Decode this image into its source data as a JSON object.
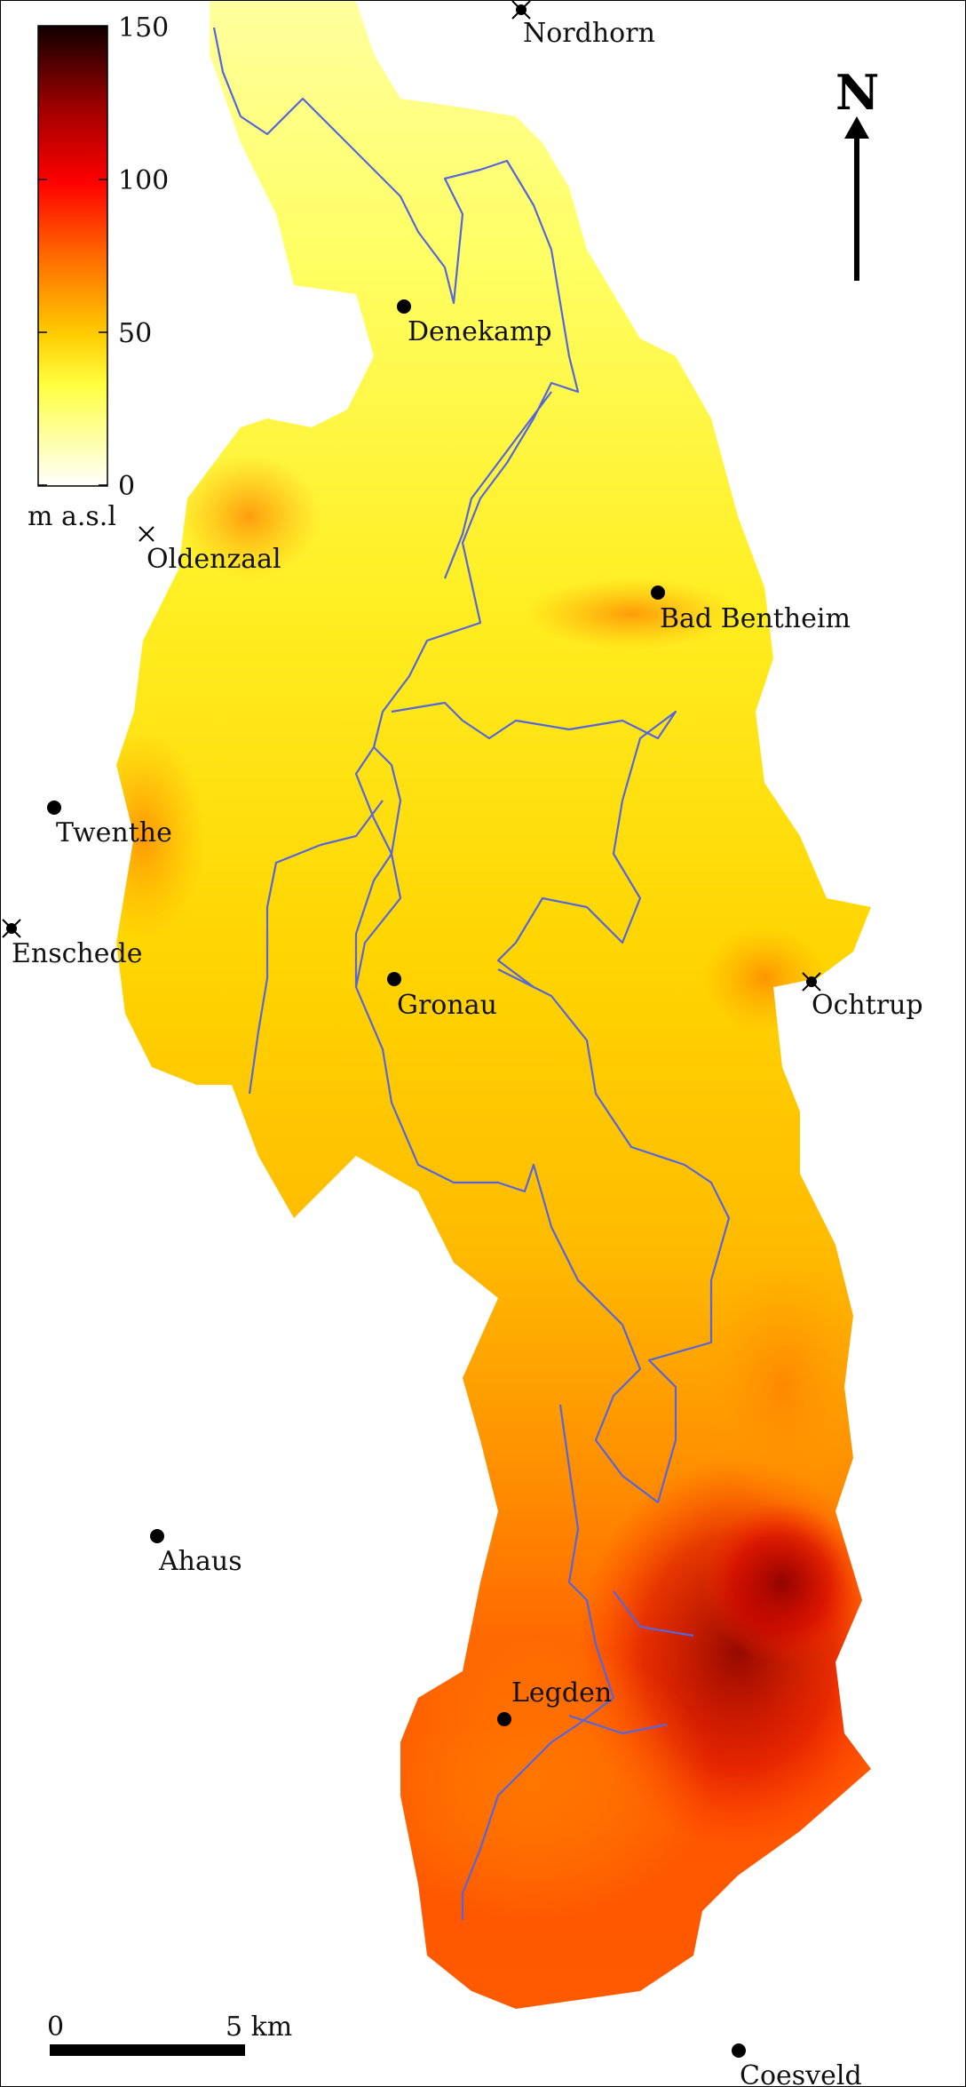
{
  "legend": {
    "ticks": [
      "150",
      "100",
      "50",
      "0"
    ],
    "unit_label": "m a.s.l",
    "colormap": [
      "#ffffff",
      "#ffff33",
      "#ffb000",
      "#ff3300",
      "#d90000",
      "#600000",
      "#000000"
    ]
  },
  "north_arrow": {
    "label": "N"
  },
  "scale_bar": {
    "start_label": "0",
    "end_label": "5 km"
  },
  "places": [
    {
      "name": "Nordhorn",
      "symbol": "cross-dot"
    },
    {
      "name": "Denekamp",
      "symbol": "dot"
    },
    {
      "name": "Oldenzaal",
      "symbol": "cross"
    },
    {
      "name": "Bad Bentheim",
      "symbol": "dot"
    },
    {
      "name": "Twenthe",
      "symbol": "dot"
    },
    {
      "name": "Enschede",
      "symbol": "cross-dot"
    },
    {
      "name": "Gronau",
      "symbol": "dot"
    },
    {
      "name": "Ochtrup",
      "symbol": "cross-dot"
    },
    {
      "name": "Ahaus",
      "symbol": "dot"
    },
    {
      "name": "Legden",
      "symbol": "dot"
    },
    {
      "name": "Coesveld",
      "symbol": "dot"
    }
  ],
  "colors": {
    "river": "#5566dd"
  }
}
